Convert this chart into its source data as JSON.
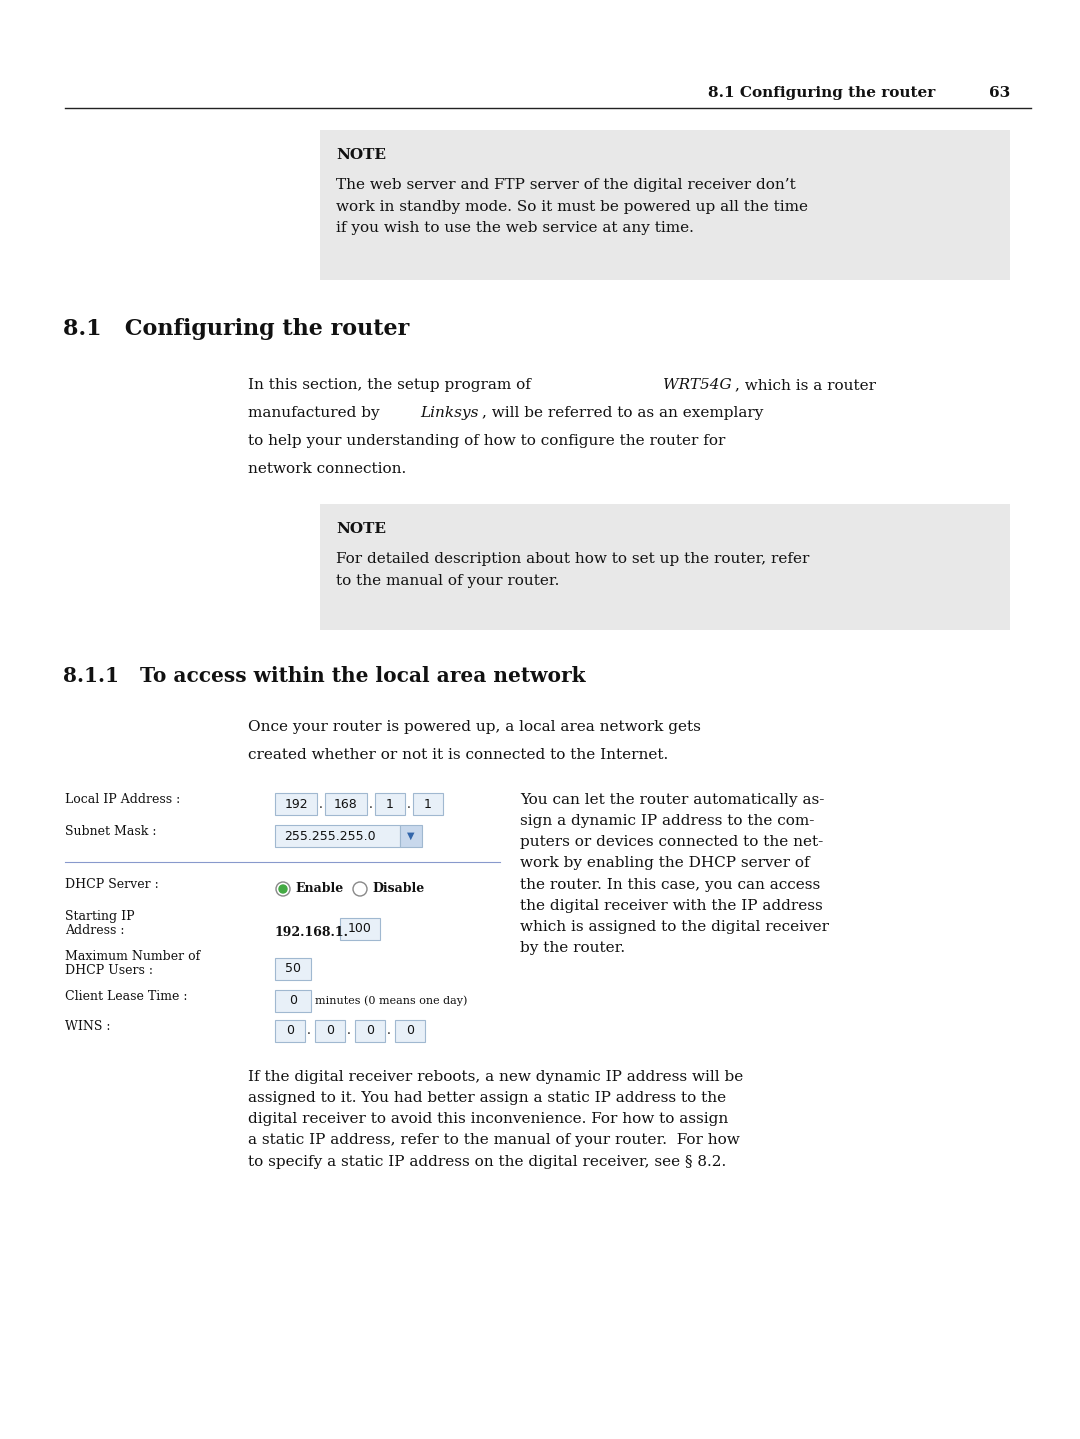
{
  "page_bg": "#ffffff",
  "header_text": "8.1 Configuring the router",
  "header_page": "63",
  "note1_bg": "#e8e8e8",
  "note1_title": "NOTE",
  "note1_body": "The web server and FTP server of the digital receiver don’t\nwork in standby mode. So it must be powered up all the time\nif you wish to use the web service at any time.",
  "section_81_title": "8.1   Configuring the router",
  "section_81_body_line1": "In this section, the setup program of ",
  "section_81_body_wrt": "WRT54G",
  "section_81_body_line1b": ", which is a router",
  "section_81_body_line2": "manufactured by ",
  "section_81_body_linksys": "Linksys",
  "section_81_body_line2b": ", will be referred to as an exemplary",
  "section_81_body_line3": "to help your understanding of how to configure the router for",
  "section_81_body_line4": "network connection.",
  "note2_bg": "#e8e8e8",
  "note2_title": "NOTE",
  "note2_body": "For detailed description about how to set up the router, refer\nto the manual of your router.",
  "section_811_title": "8.1.1   To access within the local area network",
  "section_811_para1_l1": "Once your router is powered up, a local area network gets",
  "section_811_para1_l2": "created whether or not it is connected to the Internet.",
  "section_811_right": "You can let the router automatically as-\nsign a dynamic IP address to the com-\nputers or devices connected to the net-\nwork by enabling the DHCP server of\nthe router. In this case, you can access\nthe digital receiver with the IP address\nwhich is assigned to the digital receiver\nby the router.",
  "section_811_para2": "If the digital receiver reboots, a new dynamic IP address will be\nassigned to it. You had better assign a static IP address to the\ndigital receiver to avoid this inconvenience. For how to assign\na static IP address, refer to the manual of your router.  For how\nto specify a static IP address on the digital receiver, see § 8.2.",
  "field_color": "#e8f0f8",
  "field_border": "#a0b8d0",
  "link_color": "#4444cc"
}
